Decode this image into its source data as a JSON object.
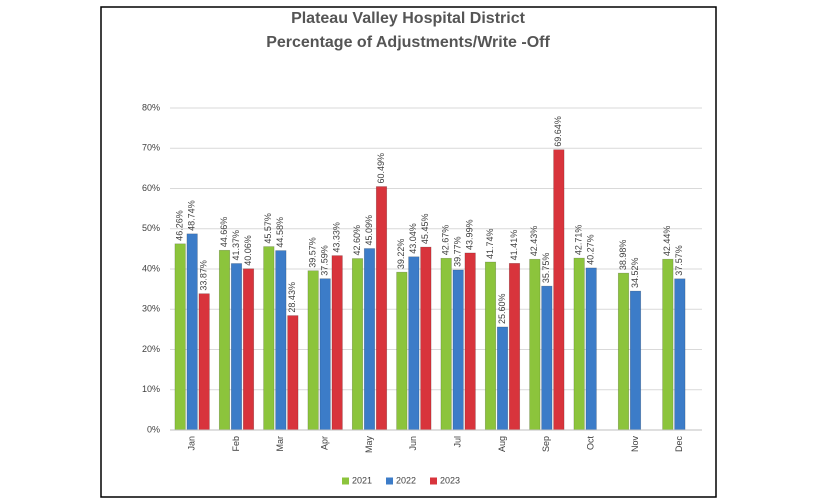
{
  "chart_data": {
    "type": "bar",
    "title": [
      "Plateau Valley Hospital District",
      "Percentage of Adjustments/Write -Off"
    ],
    "categories": [
      "Jan",
      "Feb",
      "Mar",
      "Apr",
      "May",
      "Jun",
      "Jul",
      "Aug",
      "Sep",
      "Oct",
      "Nov",
      "Dec"
    ],
    "series": [
      {
        "name": "2021",
        "color": "#8cc43c",
        "values": [
          46.26,
          44.66,
          45.57,
          39.57,
          42.6,
          39.22,
          42.67,
          41.74,
          42.43,
          42.71,
          38.98,
          42.44
        ],
        "value_labels": [
          "46.26%",
          "44.66%",
          "45.57%",
          "39.57%",
          "42.60%",
          "39.22%",
          "42.67%",
          "41.74%",
          "42.43%",
          "42.71%",
          "38.98%",
          "42.44%"
        ]
      },
      {
        "name": "2022",
        "color": "#3c7cc8",
        "values": [
          48.74,
          41.37,
          44.58,
          37.59,
          45.09,
          43.04,
          39.77,
          25.6,
          35.75,
          40.27,
          34.52,
          37.57
        ],
        "value_labels": [
          "48.74%",
          "41.37%",
          "44.58%",
          "37.59%",
          "45.09%",
          "43.04%",
          "39.77%",
          "25.60%",
          "35.75%",
          "40.27%",
          "34.52%",
          "37.57%"
        ]
      },
      {
        "name": "2023",
        "color": "#d8343c",
        "values": [
          33.87,
          40.06,
          28.43,
          43.33,
          60.49,
          45.45,
          43.99,
          41.41,
          69.64,
          null,
          null,
          null
        ],
        "value_labels": [
          "33.87%",
          "40.06%",
          "28.43%",
          "43.33%",
          "60.49%",
          "45.45%",
          "43.99%",
          "41.41%",
          "69.64%",
          null,
          null,
          null
        ]
      }
    ],
    "ylim": [
      0,
      80
    ],
    "yticks": [
      {
        "value": 0,
        "label": "0%"
      },
      {
        "value": 10,
        "label": "10%"
      },
      {
        "value": 20,
        "label": "20%"
      },
      {
        "value": 30,
        "label": "30%"
      },
      {
        "value": 40,
        "label": "40%"
      },
      {
        "value": 50,
        "label": "50%"
      },
      {
        "value": 60,
        "label": "60%"
      },
      {
        "value": 70,
        "label": "70%"
      },
      {
        "value": 80,
        "label": "80%"
      }
    ],
    "grid": true,
    "legend": "bottom"
  }
}
